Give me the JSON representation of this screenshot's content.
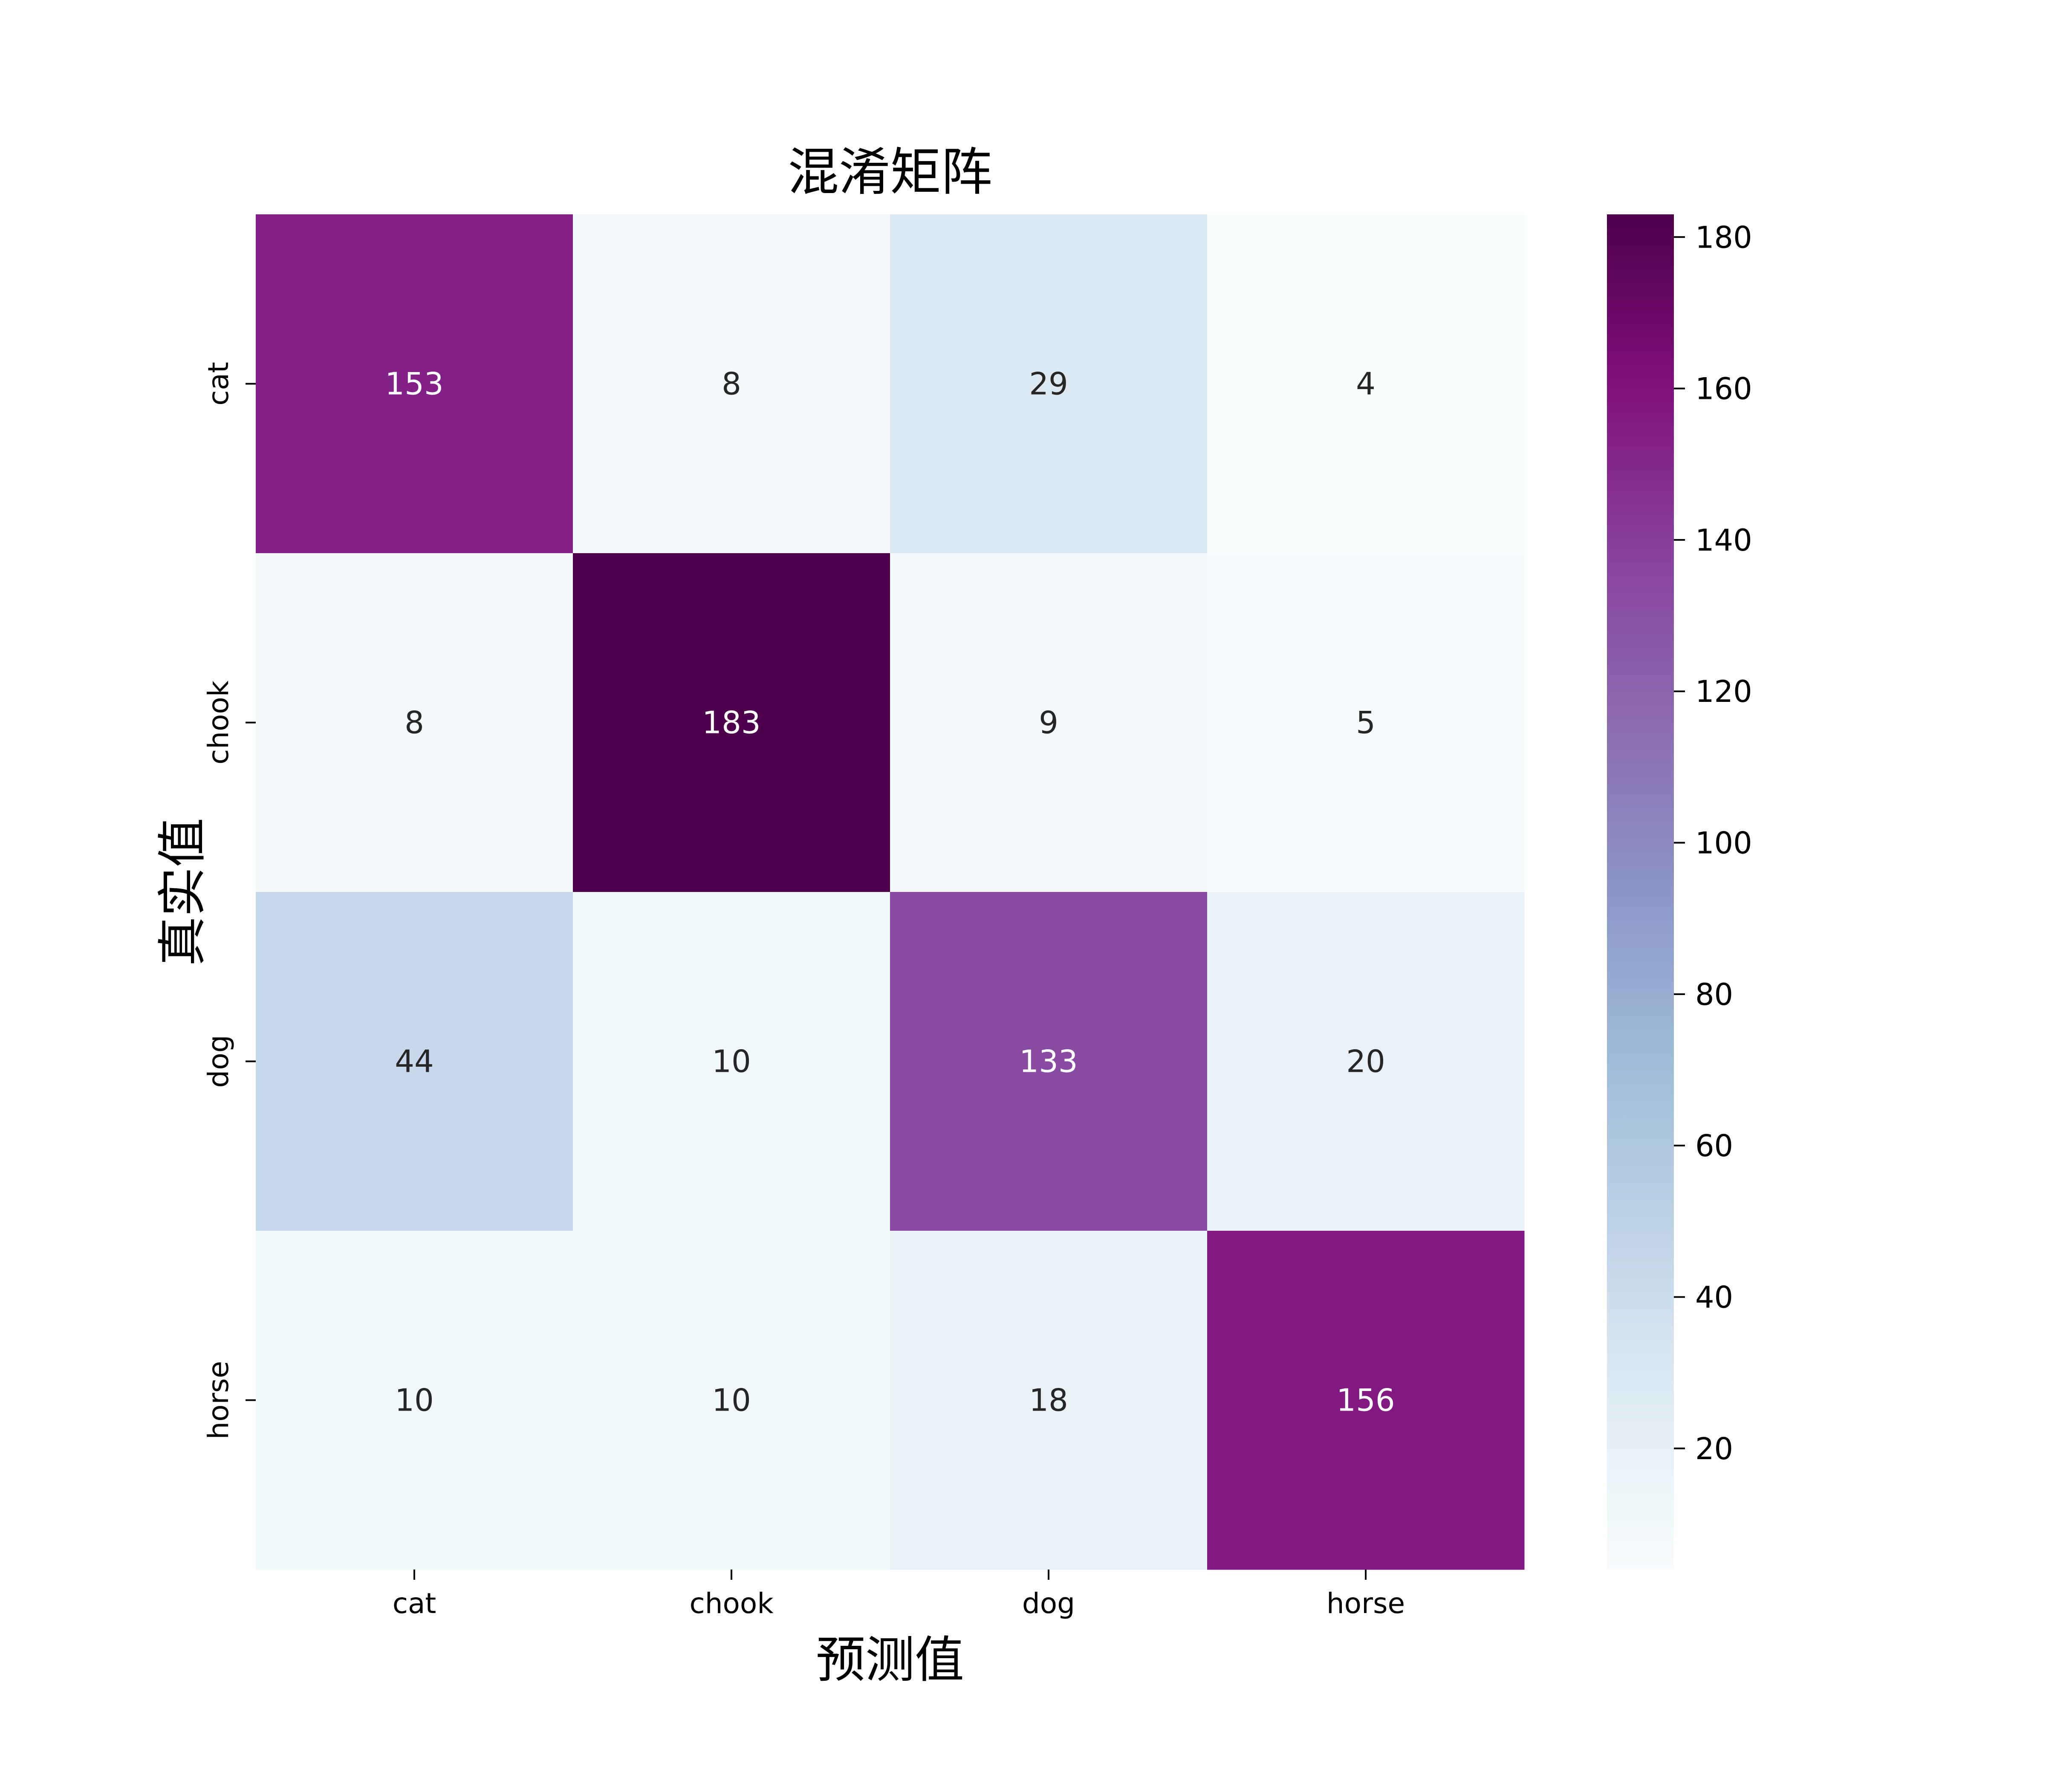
{
  "chart_data": {
    "type": "heatmap",
    "title": "混淆矩阵",
    "xlabel": "预测值",
    "ylabel": "真实值",
    "x_categories": [
      "cat",
      "chook",
      "dog",
      "horse"
    ],
    "y_categories": [
      "cat",
      "chook",
      "dog",
      "horse"
    ],
    "values": [
      [
        153,
        8,
        29,
        4
      ],
      [
        8,
        183,
        9,
        5
      ],
      [
        44,
        10,
        133,
        20
      ],
      [
        10,
        10,
        18,
        156
      ]
    ],
    "colormap": "BuPu",
    "colormap_stops": [
      "#f7fcfd",
      "#e0ecf4",
      "#bfd3e6",
      "#9ebcda",
      "#8c96c6",
      "#8c6bb1",
      "#88419d",
      "#810f7c",
      "#4d004b"
    ],
    "value_range": [
      4,
      183
    ],
    "colorbar_ticks": [
      20,
      40,
      60,
      80,
      100,
      120,
      140,
      160,
      180
    ],
    "annotations_shown": true
  }
}
